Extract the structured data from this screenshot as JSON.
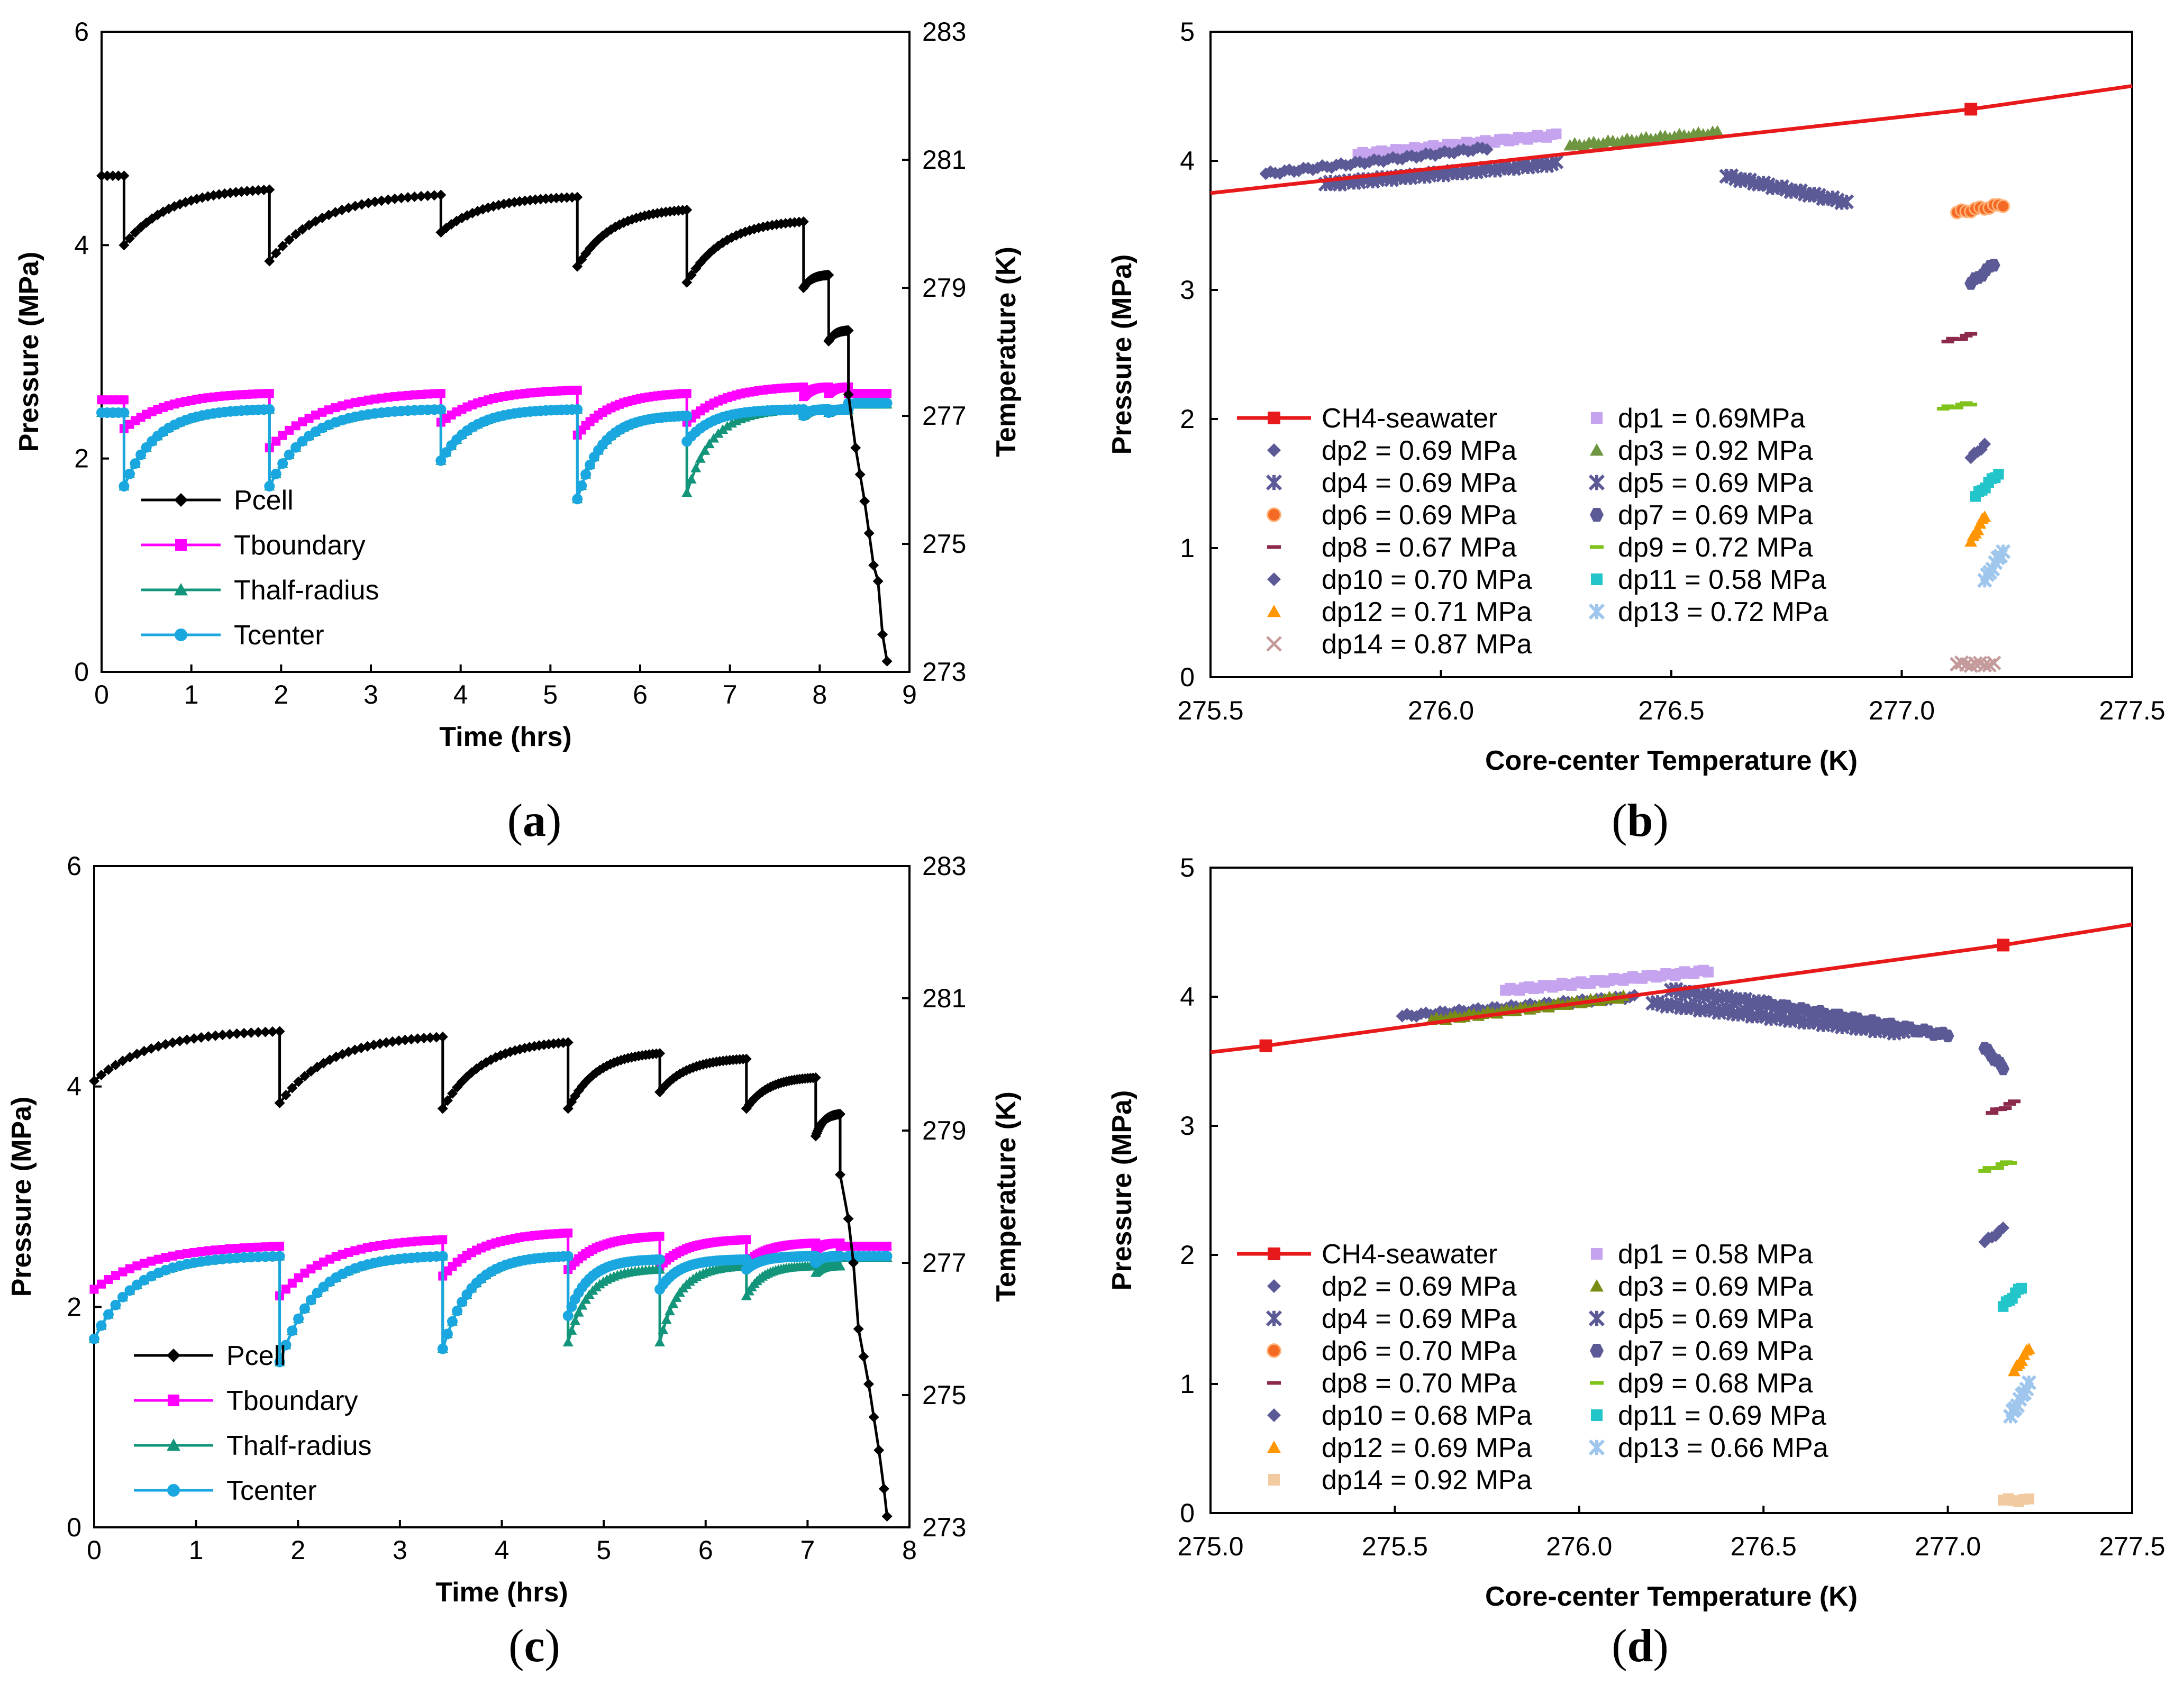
{
  "panel_labels": [
    "(a)",
    "(b)",
    "(c)",
    "(d)"
  ],
  "panel_letters": [
    "a",
    "b",
    "c",
    "d"
  ],
  "colors": {
    "Pcell": "#000000",
    "Tboundary": "#ff00ff",
    "Thalf": "#12957a",
    "Tcenter": "#1aa7e0",
    "eq": "#e8191a",
    "dp1": "#c5a3ef",
    "dp2": "#5c5a96",
    "dp3": "#6e9640",
    "dp4": "#5c5a96",
    "dp5": "#5c5a96",
    "dp6": "#f46a24",
    "dp7": "#5c5a96",
    "dp8": "#8c2a4e",
    "dp9": "#7ec21a",
    "dp10": "#5c5a96",
    "dp11": "#22c5c9",
    "dp12": "#ff9500",
    "dp13": "#9fc6ec",
    "dp14b": "#c49a9a",
    "dp14d": "#f2caa0",
    "dp3d": "#7a8c14"
  },
  "chart_data": [
    {
      "id": "a",
      "type": "line",
      "title": "(a)",
      "xlabel": "Time (hrs)",
      "ylabel": "Pressure (MPa)",
      "y2label": "Temperature (K)",
      "xlim": [
        0,
        9
      ],
      "ylim": [
        0,
        6
      ],
      "y2lim": [
        273,
        283
      ],
      "xticks": [
        0,
        1,
        2,
        3,
        4,
        5,
        6,
        7,
        8,
        9
      ],
      "yticks": [
        0,
        2,
        4,
        6
      ],
      "y2ticks": [
        273,
        275,
        277,
        279,
        281,
        283
      ],
      "legend": [
        "Pcell",
        "Tboundary",
        "Thalf-radius",
        "Tcenter"
      ],
      "cycles": [
        {
          "start": 0.25,
          "end": 1.87,
          "p0": 4.0,
          "p1": 4.52,
          "tb0": 276.8,
          "tb1": 277.35,
          "th0": 275.9,
          "th1": 277.1,
          "tc0": 275.9,
          "tc1": 277.1
        },
        {
          "start": 1.87,
          "end": 3.78,
          "p0": 3.85,
          "p1": 4.47,
          "tb0": 276.5,
          "tb1": 277.35,
          "th0": 275.9,
          "th1": 277.1,
          "tc0": 275.9,
          "tc1": 277.1
        },
        {
          "start": 3.78,
          "end": 5.3,
          "p0": 4.12,
          "p1": 4.45,
          "tb0": 276.9,
          "tb1": 277.4,
          "th0": 276.3,
          "th1": 277.1,
          "tc0": 276.3,
          "tc1": 277.1
        },
        {
          "start": 5.3,
          "end": 6.52,
          "p0": 3.8,
          "p1": 4.33,
          "tb0": 276.7,
          "tb1": 277.35,
          "th0": 275.7,
          "th1": 277.0,
          "tc0": 275.7,
          "tc1": 277.0
        },
        {
          "start": 6.52,
          "end": 7.82,
          "p0": 3.65,
          "p1": 4.22,
          "tb0": 276.9,
          "tb1": 277.45,
          "th0": 275.8,
          "th1": 277.1,
          "tc0": 276.6,
          "tc1": 277.1
        },
        {
          "start": 7.82,
          "end": 8.1,
          "p0": 3.6,
          "p1": 3.72,
          "tb0": 277.3,
          "tb1": 277.45,
          "th0": 277.0,
          "th1": 277.1,
          "tc0": 277.0,
          "tc1": 277.1
        },
        {
          "start": 8.1,
          "end": 8.32,
          "p0": 3.1,
          "p1": 3.2,
          "tb0": 277.35,
          "tb1": 277.45,
          "th0": 277.05,
          "th1": 277.1,
          "tc0": 277.05,
          "tc1": 277.1
        }
      ],
      "pre": {
        "x0": 0.0,
        "x1": 0.25,
        "p": 4.65,
        "tb": 277.25,
        "th": 277.05,
        "tc": 277.05
      },
      "tail": {
        "x": [
          8.32,
          8.4,
          8.45,
          8.5,
          8.55,
          8.6,
          8.65,
          8.7,
          8.75
        ],
        "p": [
          2.6,
          2.1,
          1.85,
          1.6,
          1.3,
          1.0,
          0.85,
          0.35,
          0.1
        ]
      },
      "tail_temp": 277.2
    },
    {
      "id": "b",
      "type": "scatter",
      "title": "(b)",
      "xlabel": "Core-center  Temperature (K)",
      "ylabel": "Pressure (MPa)",
      "xlim": [
        275.5,
        277.5
      ],
      "ylim": [
        0,
        5
      ],
      "xticks": [
        "275.5",
        "276.0",
        "276.5",
        "277.0",
        "277.5"
      ],
      "yticks": [
        "0",
        "1",
        "2",
        "3",
        "4",
        "5"
      ],
      "equilibrium": {
        "name": "CH4-seawater",
        "x": [
          275.5,
          277.15,
          277.5
        ],
        "y": [
          3.75,
          4.4,
          4.58
        ]
      },
      "series": [
        {
          "name": "dp1",
          "label": "dp1 = 0.69MPa",
          "marker": "square",
          "color": "#c5a3ef",
          "segments": [
            [
              275.82,
              4.05,
              276.25,
              4.2
            ]
          ]
        },
        {
          "name": "dp2",
          "label": "dp2 = 0.69 MPa",
          "marker": "diamond",
          "color": "#5c5a96",
          "segments": [
            [
              275.62,
              3.9,
              276.1,
              4.1
            ]
          ]
        },
        {
          "name": "dp3",
          "label": "dp3 = 0.92 MPa",
          "marker": "triangle",
          "color": "#6e9640",
          "segments": [
            [
              276.28,
              4.12,
              276.6,
              4.22
            ]
          ]
        },
        {
          "name": "dp4",
          "label": "dp4 = 0.69 MPa",
          "marker": "star",
          "color": "#5c5a96",
          "segments": [
            [
              275.75,
              3.82,
              276.25,
              3.98
            ]
          ]
        },
        {
          "name": "dp5",
          "label": "dp5 = 0.69 MPa",
          "marker": "star",
          "color": "#5c5a96",
          "segments": [
            [
              276.62,
              3.88,
              276.88,
              3.68
            ]
          ]
        },
        {
          "name": "dp6",
          "label": "dp6 = 0.69 MPa",
          "marker": "circle",
          "color": "#f46a24",
          "segments": [
            [
              277.12,
              3.6,
              277.22,
              3.66
            ]
          ]
        },
        {
          "name": "dp7",
          "label": "dp7 = 0.69 MPa",
          "marker": "hex",
          "color": "#5c5a96",
          "segments": [
            [
              277.15,
              3.05,
              277.2,
              3.2
            ]
          ]
        },
        {
          "name": "dp8",
          "label": "dp8 = 0.67 MPa",
          "marker": "dash",
          "color": "#8c2a4e",
          "segments": [
            [
              277.1,
              2.6,
              277.15,
              2.65
            ]
          ]
        },
        {
          "name": "dp9",
          "label": "dp9 = 0.72 MPa",
          "marker": "dash",
          "color": "#7ec21a",
          "segments": [
            [
              277.09,
              2.08,
              277.15,
              2.12
            ]
          ]
        },
        {
          "name": "dp10",
          "label": "dp10 = 0.70 MPa",
          "marker": "diamond",
          "color": "#5c5a96",
          "segments": [
            [
              277.15,
              1.7,
              277.18,
              1.8
            ]
          ]
        },
        {
          "name": "dp11",
          "label": "dp11 = 0.58 MPa",
          "marker": "square",
          "color": "#22c5c9",
          "segments": [
            [
              277.16,
              1.4,
              277.21,
              1.58
            ]
          ]
        },
        {
          "name": "dp12",
          "label": "dp12 = 0.71 MPa",
          "marker": "triangle",
          "color": "#ff9500",
          "segments": [
            [
              277.15,
              1.05,
              277.18,
              1.25
            ]
          ]
        },
        {
          "name": "dp13",
          "label": "dp13 = 0.72 MPa",
          "marker": "star",
          "color": "#9fc6ec",
          "segments": [
            [
              277.18,
              0.75,
              277.22,
              0.98
            ]
          ]
        },
        {
          "name": "dp14",
          "label": "dp14 = 0.87 MPa",
          "marker": "x",
          "color": "#c49a9a",
          "segments": [
            [
              277.12,
              0.1,
              277.2,
              0.1
            ]
          ]
        }
      ]
    },
    {
      "id": "c",
      "type": "line",
      "title": "(c)",
      "xlabel": "Time (hrs)",
      "ylabel": "Pressure (MPa)",
      "y2label": "Temperature (K)",
      "xlim": [
        0,
        8
      ],
      "ylim": [
        0,
        6
      ],
      "y2lim": [
        273,
        283
      ],
      "xticks": [
        0,
        1,
        2,
        3,
        4,
        5,
        6,
        7,
        8
      ],
      "yticks": [
        0,
        2,
        4,
        6
      ],
      "y2ticks": [
        273,
        275,
        277,
        279,
        281,
        283
      ],
      "legend": [
        "Pcell",
        "Tboundary",
        "Thalf-radius",
        "Tcenter"
      ],
      "cycles": [
        {
          "start": 0.0,
          "end": 1.82,
          "p0": 4.05,
          "p1": 4.5,
          "tb0": 276.6,
          "tb1": 277.25,
          "th0": 275.85,
          "th1": 277.1,
          "tc0": 275.85,
          "tc1": 277.1
        },
        {
          "start": 1.82,
          "end": 3.42,
          "p0": 3.85,
          "p1": 4.45,
          "tb0": 276.5,
          "tb1": 277.35,
          "th0": 275.5,
          "th1": 277.1,
          "tc0": 275.5,
          "tc1": 277.1
        },
        {
          "start": 3.42,
          "end": 4.65,
          "p0": 3.8,
          "p1": 4.4,
          "tb0": 276.8,
          "tb1": 277.45,
          "th0": 275.7,
          "th1": 277.1,
          "tc0": 275.7,
          "tc1": 277.1
        },
        {
          "start": 4.65,
          "end": 5.55,
          "p0": 3.8,
          "p1": 4.3,
          "tb0": 276.9,
          "tb1": 277.4,
          "th0": 275.8,
          "th1": 276.9,
          "tc0": 276.2,
          "tc1": 277.05
        },
        {
          "start": 5.55,
          "end": 6.4,
          "p0": 3.95,
          "p1": 4.25,
          "tb0": 276.95,
          "tb1": 277.35,
          "th0": 275.8,
          "th1": 276.95,
          "tc0": 276.6,
          "tc1": 277.05
        },
        {
          "start": 6.4,
          "end": 7.08,
          "p0": 3.8,
          "p1": 4.08,
          "tb0": 277.0,
          "tb1": 277.3,
          "th0": 276.5,
          "th1": 276.95,
          "tc0": 276.9,
          "tc1": 277.1
        },
        {
          "start": 7.08,
          "end": 7.32,
          "p0": 3.55,
          "p1": 3.75,
          "tb0": 277.2,
          "tb1": 277.3,
          "th0": 276.85,
          "th1": 276.95,
          "tc0": 277.0,
          "tc1": 277.1
        }
      ],
      "pre": null,
      "tail": {
        "x": [
          7.32,
          7.4,
          7.45,
          7.5,
          7.55,
          7.6,
          7.65,
          7.7,
          7.75,
          7.78
        ],
        "p": [
          3.2,
          2.8,
          2.4,
          1.8,
          1.55,
          1.3,
          1.0,
          0.7,
          0.35,
          0.1
        ]
      },
      "tail_temp": 277.1
    },
    {
      "id": "d",
      "type": "scatter",
      "title": "(d)",
      "xlabel": "Core-center  Temperature (K)",
      "ylabel": "Pressure (MPa)",
      "xlim": [
        275.0,
        277.5
      ],
      "ylim": [
        0,
        5
      ],
      "xticks": [
        "275.0",
        "275.5",
        "276.0",
        "276.5",
        "277.0",
        "277.5"
      ],
      "yticks": [
        "0",
        "1",
        "2",
        "3",
        "4",
        "5"
      ],
      "equilibrium": {
        "name": "CH4-seawater",
        "x": [
          275.0,
          275.15,
          277.15,
          277.5
        ],
        "y": [
          3.57,
          3.62,
          4.4,
          4.56
        ]
      },
      "series": [
        {
          "name": "dp1",
          "label": "dp1 = 0.58 MPa",
          "marker": "square",
          "color": "#c5a3ef",
          "segments": [
            [
              275.8,
              4.05,
              276.35,
              4.2
            ]
          ]
        },
        {
          "name": "dp2",
          "label": "dp2 = 0.69 MPa",
          "marker": "diamond",
          "color": "#5c5a96",
          "segments": [
            [
              275.52,
              3.85,
              276.15,
              4.0
            ]
          ]
        },
        {
          "name": "dp3",
          "label": "dp3 = 0.69 MPa",
          "marker": "triangle",
          "color": "#7a8c14",
          "segments": [
            [
              275.6,
              3.82,
              276.12,
              4.0
            ]
          ]
        },
        {
          "name": "dp4",
          "label": "dp4 = 0.69 MPa",
          "marker": "star",
          "color": "#5c5a96",
          "segments": [
            [
              276.2,
              3.95,
              276.88,
              3.72
            ]
          ]
        },
        {
          "name": "dp5",
          "label": "dp5 = 0.69 MPa",
          "marker": "star",
          "color": "#5c5a96",
          "segments": [
            [
              276.25,
              4.05,
              276.5,
              3.95
            ]
          ]
        },
        {
          "name": "dp6",
          "label": "dp6 = 0.70 MPa",
          "marker": "circle",
          "color": "#f46a24",
          "segments": []
        },
        {
          "name": "dp7",
          "label": "dp7 = 0.69 MPa",
          "marker": "hex",
          "color": "#5c5a96",
          "segments": [
            [
              276.5,
              3.95,
              277.0,
              3.7
            ],
            [
              277.1,
              3.6,
              277.15,
              3.45
            ]
          ]
        },
        {
          "name": "dp8",
          "label": "dp8 = 0.70 MPa",
          "marker": "dash",
          "color": "#8c2a4e",
          "segments": [
            [
              277.12,
              3.1,
              277.18,
              3.18
            ]
          ]
        },
        {
          "name": "dp9",
          "label": "dp9 = 0.68 MPa",
          "marker": "dash",
          "color": "#7ec21a",
          "segments": [
            [
              277.1,
              2.65,
              277.17,
              2.72
            ]
          ]
        },
        {
          "name": "dp10",
          "label": "dp10 = 0.68 MPa",
          "marker": "diamond",
          "color": "#5c5a96",
          "segments": [
            [
              277.1,
              2.1,
              277.15,
              2.2
            ]
          ]
        },
        {
          "name": "dp11",
          "label": "dp11 = 0.69 MPa",
          "marker": "square",
          "color": "#22c5c9",
          "segments": [
            [
              277.15,
              1.6,
              277.2,
              1.75
            ]
          ]
        },
        {
          "name": "dp12",
          "label": "dp12 = 0.69 MPa",
          "marker": "triangle",
          "color": "#ff9500",
          "segments": [
            [
              277.18,
              1.1,
              277.22,
              1.28
            ]
          ]
        },
        {
          "name": "dp13",
          "label": "dp13 = 0.66 MPa",
          "marker": "star",
          "color": "#9fc6ec",
          "segments": [
            [
              277.17,
              0.75,
              277.22,
              1.0
            ]
          ]
        },
        {
          "name": "dp14",
          "label": "dp14 = 0.92 MPa",
          "marker": "square",
          "color": "#f2caa0",
          "segments": [
            [
              277.15,
              0.1,
              277.22,
              0.1
            ]
          ]
        }
      ]
    }
  ]
}
